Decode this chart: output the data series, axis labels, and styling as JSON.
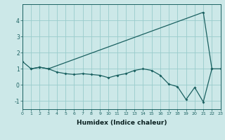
{
  "xlabel": "Humidex (Indice chaleur)",
  "background_color": "#cce8e8",
  "grid_color": "#99cccc",
  "line_color": "#1a6060",
  "upper_x": [
    0,
    1,
    2,
    3,
    21,
    22,
    23
  ],
  "upper_y": [
    1.45,
    1.0,
    1.1,
    1.0,
    4.5,
    1.0,
    1.0
  ],
  "lower_x": [
    1,
    2,
    3,
    4,
    5,
    6,
    7,
    8,
    9,
    10,
    11,
    12,
    13,
    14,
    15,
    16,
    17,
    18,
    19,
    20,
    21,
    22
  ],
  "lower_y": [
    1.0,
    1.1,
    1.0,
    0.8,
    0.7,
    0.65,
    0.7,
    0.65,
    0.6,
    0.45,
    0.6,
    0.7,
    0.9,
    1.0,
    0.9,
    0.6,
    0.05,
    -0.1,
    -0.9,
    -0.15,
    -1.05,
    1.0
  ],
  "xlim": [
    0,
    23
  ],
  "ylim": [
    -1.5,
    5.0
  ],
  "yticks": [
    -1,
    0,
    1,
    2,
    3,
    4
  ],
  "xticks": [
    0,
    1,
    2,
    3,
    4,
    5,
    6,
    7,
    8,
    9,
    10,
    11,
    12,
    13,
    14,
    15,
    16,
    17,
    18,
    19,
    20,
    21,
    22,
    23
  ]
}
